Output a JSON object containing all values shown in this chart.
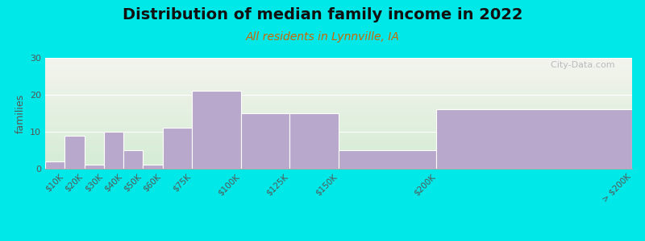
{
  "title": "Distribution of median family income in 2022",
  "subtitle": "All residents in Lynnville, IA",
  "ylabel": "families",
  "bar_color": "#b8a8cc",
  "background_outer": "#00e8e8",
  "plot_bg_top": "#f4f4ee",
  "plot_bg_bottom": "#d4ecd4",
  "ylim": [
    0,
    30
  ],
  "yticks": [
    0,
    10,
    20,
    30
  ],
  "title_fontsize": 14,
  "subtitle_fontsize": 10,
  "ylabel_fontsize": 9,
  "watermark": "  City-Data.com",
  "bin_edges": [
    0,
    10,
    20,
    30,
    40,
    50,
    60,
    75,
    100,
    125,
    150,
    200,
    300
  ],
  "values": [
    2,
    9,
    1,
    10,
    5,
    1,
    11,
    21,
    15,
    15,
    5,
    16
  ],
  "tick_labels": [
    "$10K",
    "$20K",
    "$30K",
    "$40K",
    "$50K",
    "$60K",
    "$75K",
    "$100K",
    "$125K",
    "$150K",
    "$200K",
    "> $200K"
  ]
}
